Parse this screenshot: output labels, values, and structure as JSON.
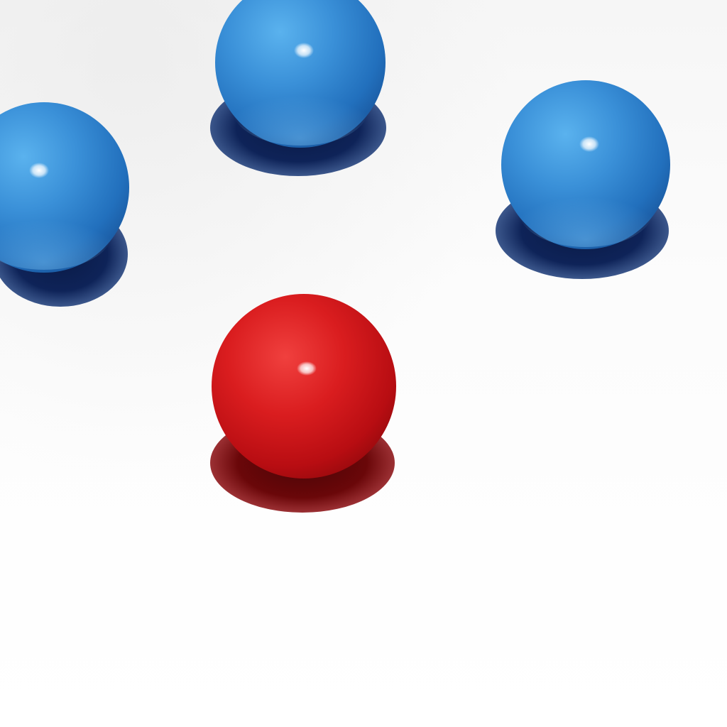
{
  "scene": {
    "background_color": "#fbfbfb",
    "objects": [
      {
        "name": "blue-ball-left",
        "kind": "ball",
        "color": "blue",
        "base_color": "#2f86cf",
        "shadow_color": "#0d1f4d"
      },
      {
        "name": "blue-ball-top-center",
        "kind": "ball",
        "color": "blue",
        "base_color": "#2f86cf",
        "shadow_color": "#0d1f4d"
      },
      {
        "name": "blue-ball-right",
        "kind": "ball",
        "color": "blue",
        "base_color": "#2f86cf",
        "shadow_color": "#0d1f4d"
      },
      {
        "name": "red-ball-center",
        "kind": "ball",
        "color": "red",
        "base_color": "#d4161a",
        "shadow_color": "#5a0608"
      }
    ]
  }
}
